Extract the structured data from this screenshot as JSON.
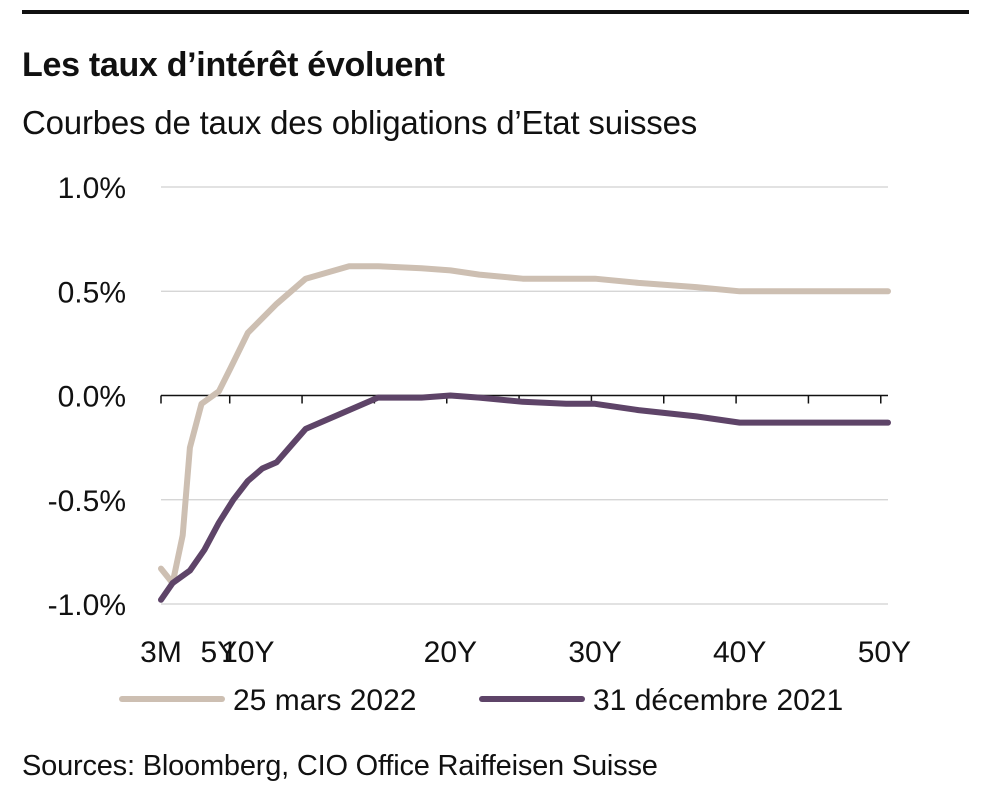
{
  "header": {
    "title": "Les taux d’intérêt évoluent",
    "subtitle": "Courbes de taux des obligations d’Etat suisses"
  },
  "footer": {
    "source": "Sources: Bloomberg, CIO Office Raiffeisen Suisse"
  },
  "chart_data": {
    "type": "line",
    "title": "Les taux d’intérêt évoluent",
    "subtitle": "Courbes de taux des obligations d’Etat suisses",
    "x_unit": "years to maturity",
    "xlim": [
      0,
      50.25
    ],
    "ylim": [
      -1.0,
      1.0
    ],
    "y_ticks": [
      1.0,
      0.5,
      0.0,
      -0.5,
      -1.0
    ],
    "y_tick_labels": [
      "1.0%",
      "0.5%",
      "0.0%",
      "-0.5%",
      "-1.0%"
    ],
    "x_ticks": [
      0,
      4,
      6,
      20,
      30,
      40,
      50
    ],
    "x_tick_labels": [
      "3M",
      "5Y",
      "10Y",
      "20Y",
      "30Y",
      "40Y",
      "50Y"
    ],
    "grid": true,
    "legend_position": "bottom",
    "series": [
      {
        "name": "25 mars 2022",
        "color": "#cdbfb2",
        "x": [
          0,
          0.8,
          1.5,
          2,
          2.8,
          4,
          4.8,
          6,
          8,
          10,
          13,
          15,
          18,
          20,
          22,
          25,
          28,
          30,
          33,
          37,
          40,
          44,
          48,
          50.25
        ],
        "y": [
          -0.83,
          -0.9,
          -0.67,
          -0.25,
          -0.04,
          0.02,
          0.13,
          0.3,
          0.44,
          0.56,
          0.62,
          0.62,
          0.61,
          0.6,
          0.58,
          0.56,
          0.56,
          0.56,
          0.54,
          0.52,
          0.5,
          0.5,
          0.5,
          0.5
        ]
      },
      {
        "name": "31 décembre 2021",
        "color": "#5e4468",
        "x": [
          0,
          0.8,
          2,
          3,
          4,
          5,
          6,
          7,
          8,
          9,
          10,
          13,
          15,
          18,
          20,
          22,
          25,
          28,
          30,
          33,
          37,
          40,
          44,
          48,
          50.25
        ],
        "y": [
          -0.98,
          -0.9,
          -0.84,
          -0.74,
          -0.61,
          -0.5,
          -0.41,
          -0.35,
          -0.32,
          -0.24,
          -0.16,
          -0.07,
          -0.01,
          -0.01,
          0.0,
          -0.01,
          -0.03,
          -0.04,
          -0.04,
          -0.07,
          -0.1,
          -0.13,
          -0.13,
          -0.13,
          -0.13
        ]
      }
    ]
  }
}
